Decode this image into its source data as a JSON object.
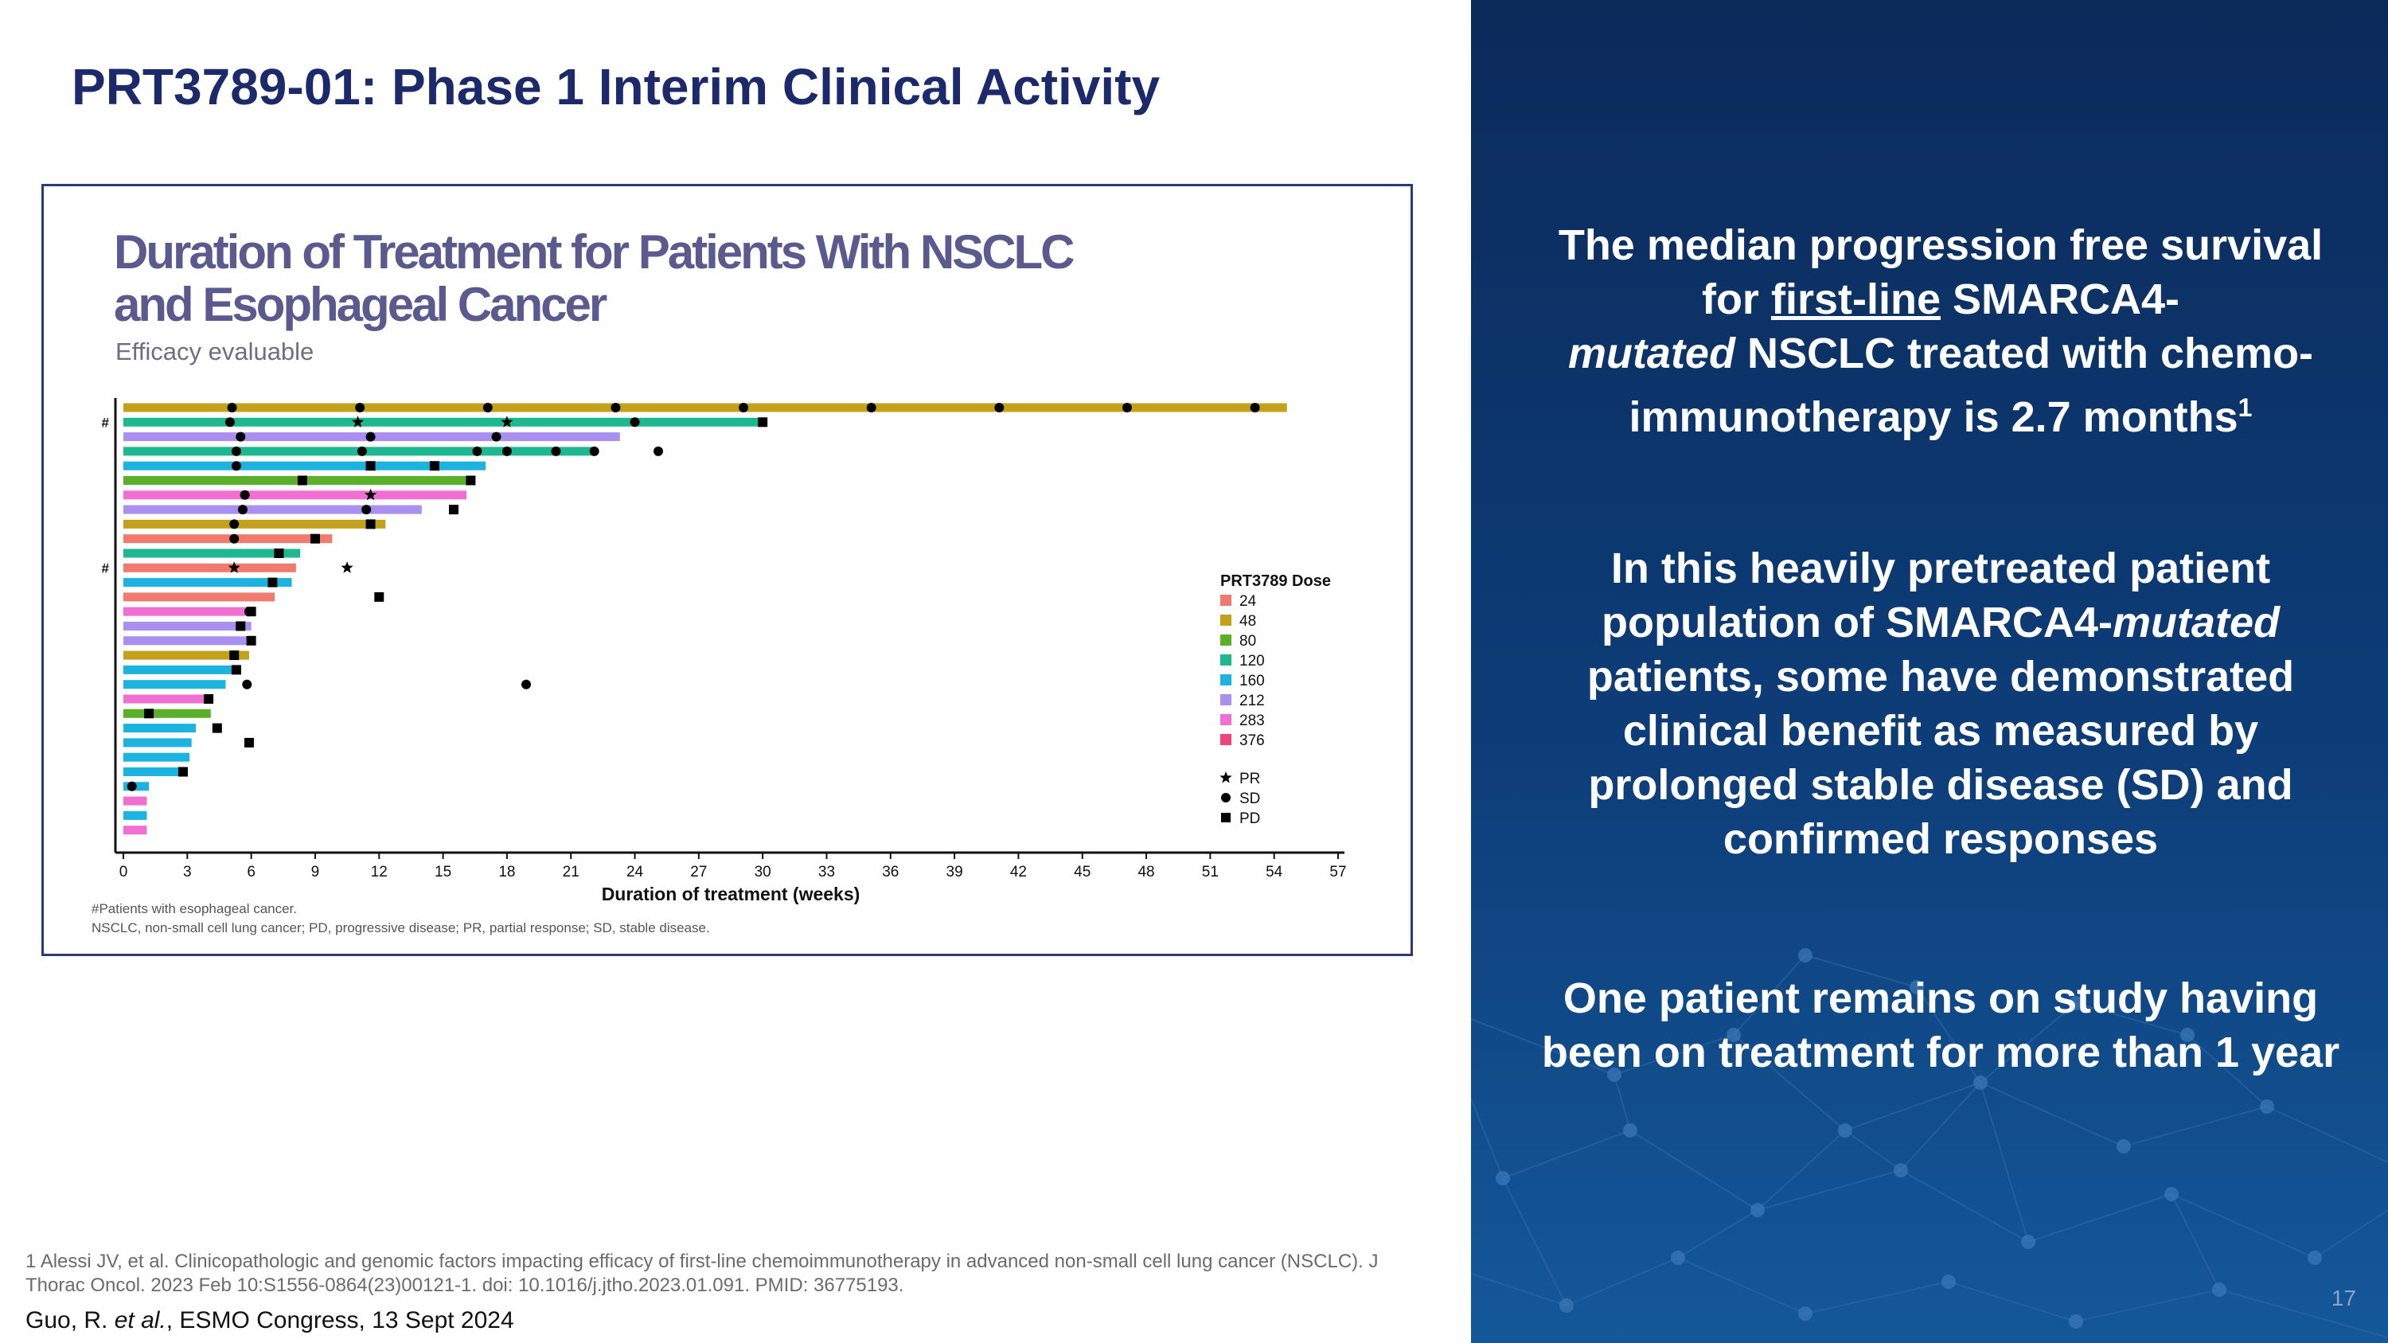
{
  "slide": {
    "title": "PRT3789-01: Phase 1 Interim Clinical Activity",
    "page_number": "17",
    "reference": "1 Alessi JV, et al. Clinicopathologic and genomic factors impacting efficacy of first-line chemoimmunotherapy in advanced non-small cell lung cancer (NSCLC). J Thorac Oncol. 2023 Feb 10:S1556-0864(23)00121-1. doi: 10.1016/j.jtho.2023.01.091. PMID: 36775193.",
    "citation_author": "Guo, R.",
    "citation_etal": "et al.",
    "citation_rest": ", ESMO Congress, 13 Sept 2024"
  },
  "panel": {
    "p1_a": "The median progression free survival for",
    "p1_link": "first-line",
    "p1_b": "SMARCA4-",
    "p1_italic": "mutated",
    "p1_c": "NSCLC treated with chemo-immunotherapy is 2.7 months",
    "p1_sup": "1",
    "p2_a": "In this heavily pretreated patient population of SMARCA4-",
    "p2_italic": "mutated",
    "p2_b": "patients, some have demonstrated clinical benefit as measured by prolonged stable disease (SD) and confirmed responses",
    "p3": "One patient remains on study having been on treatment for more than 1 year"
  },
  "chart_data": {
    "type": "swimmer",
    "title_line1": "Duration of Treatment for Patients With NSCLC",
    "title_line2": "and Esophageal Cancer",
    "subtitle": "Efficacy evaluable",
    "xlabel": "Duration of treatment (weeks)",
    "xlim": [
      0,
      57
    ],
    "xticks": [
      "0",
      "3",
      "6",
      "9",
      "12",
      "15",
      "18",
      "21",
      "24",
      "27",
      "30",
      "33",
      "36",
      "39",
      "42",
      "45",
      "48",
      "51",
      "54",
      "57"
    ],
    "legend_title": "PRT3789 Dose",
    "doses": [
      {
        "label": "24",
        "color": "#f07a6e"
      },
      {
        "label": "48",
        "color": "#c4a11a"
      },
      {
        "label": "80",
        "color": "#5bb02a"
      },
      {
        "label": "120",
        "color": "#1db88f"
      },
      {
        "label": "160",
        "color": "#1cb3e0"
      },
      {
        "label": "212",
        "color": "#a98ff0"
      },
      {
        "label": "283",
        "color": "#f06fd0"
      },
      {
        "label": "376",
        "color": "#f0457a"
      }
    ],
    "markers": [
      {
        "symbol": "star",
        "label": "PR"
      },
      {
        "symbol": "circle",
        "label": "SD"
      },
      {
        "symbol": "square",
        "label": "PD"
      }
    ],
    "footnote1": "#Patients with esophageal cancer.",
    "footnote2": "NSCLC, non-small cell lung cancer; PD, progressive disease; PR, partial response; SD, stable disease.",
    "patients": [
      {
        "dose": "48",
        "end": 54.6,
        "flag": "",
        "events": [
          {
            "t": 5.1,
            "m": "SD"
          },
          {
            "t": 11.1,
            "m": "SD"
          },
          {
            "t": 17.1,
            "m": "SD"
          },
          {
            "t": 23.1,
            "m": "SD"
          },
          {
            "t": 29.1,
            "m": "SD"
          },
          {
            "t": 35.1,
            "m": "SD"
          },
          {
            "t": 41.1,
            "m": "SD"
          },
          {
            "t": 47.1,
            "m": "SD"
          },
          {
            "t": 53.1,
            "m": "SD"
          }
        ]
      },
      {
        "dose": "120",
        "end": 30.0,
        "flag": "#",
        "events": [
          {
            "t": 5.0,
            "m": "SD"
          },
          {
            "t": 11.0,
            "m": "PR"
          },
          {
            "t": 18.0,
            "m": "PR"
          },
          {
            "t": 24.0,
            "m": "SD"
          },
          {
            "t": 30.0,
            "m": "PD"
          }
        ]
      },
      {
        "dose": "212",
        "end": 23.3,
        "flag": "",
        "events": [
          {
            "t": 5.5,
            "m": "SD"
          },
          {
            "t": 11.6,
            "m": "SD"
          },
          {
            "t": 17.5,
            "m": "SD"
          }
        ]
      },
      {
        "dose": "120",
        "end": 22.1,
        "flag": "",
        "events": [
          {
            "t": 5.3,
            "m": "SD"
          },
          {
            "t": 11.2,
            "m": "SD"
          },
          {
            "t": 16.6,
            "m": "SD"
          },
          {
            "t": 18.0,
            "m": "SD"
          },
          {
            "t": 20.3,
            "m": "SD"
          },
          {
            "t": 22.1,
            "m": "SD"
          },
          {
            "t": 25.1,
            "m": "SD"
          }
        ]
      },
      {
        "dose": "160",
        "end": 17.0,
        "flag": "",
        "events": [
          {
            "t": 5.3,
            "m": "SD"
          },
          {
            "t": 11.6,
            "m": "PD"
          },
          {
            "t": 14.6,
            "m": "PD"
          }
        ]
      },
      {
        "dose": "80",
        "end": 16.3,
        "flag": "",
        "events": [
          {
            "t": 8.4,
            "m": "PD"
          },
          {
            "t": 16.3,
            "m": "PD"
          }
        ]
      },
      {
        "dose": "283",
        "end": 16.1,
        "flag": "",
        "events": [
          {
            "t": 5.7,
            "m": "SD"
          },
          {
            "t": 11.6,
            "m": "PR"
          }
        ]
      },
      {
        "dose": "212",
        "end": 14.0,
        "flag": "",
        "events": [
          {
            "t": 5.6,
            "m": "SD"
          },
          {
            "t": 11.4,
            "m": "SD"
          },
          {
            "t": 15.5,
            "m": "PD"
          }
        ]
      },
      {
        "dose": "48",
        "end": 12.3,
        "flag": "",
        "events": [
          {
            "t": 5.2,
            "m": "SD"
          },
          {
            "t": 11.6,
            "m": "PD"
          }
        ]
      },
      {
        "dose": "24",
        "end": 9.8,
        "flag": "",
        "events": [
          {
            "t": 5.2,
            "m": "SD"
          },
          {
            "t": 9.0,
            "m": "PD"
          }
        ]
      },
      {
        "dose": "120",
        "end": 8.3,
        "flag": "",
        "events": [
          {
            "t": 7.3,
            "m": "PD"
          }
        ]
      },
      {
        "dose": "24",
        "end": 8.1,
        "flag": "#",
        "events": [
          {
            "t": 5.2,
            "m": "PR"
          },
          {
            "t": 10.5,
            "m": "PR"
          }
        ]
      },
      {
        "dose": "160",
        "end": 7.9,
        "flag": "",
        "events": [
          {
            "t": 7.0,
            "m": "PD"
          }
        ]
      },
      {
        "dose": "24",
        "end": 7.1,
        "flag": "",
        "events": [
          {
            "t": 12.0,
            "m": "PD"
          }
        ]
      },
      {
        "dose": "283",
        "end": 6.0,
        "flag": "",
        "events": [
          {
            "t": 5.9,
            "m": "SD"
          },
          {
            "t": 6.0,
            "m": "PD"
          }
        ]
      },
      {
        "dose": "212",
        "end": 6.0,
        "flag": "",
        "events": [
          {
            "t": 5.5,
            "m": "PD"
          }
        ]
      },
      {
        "dose": "212",
        "end": 6.0,
        "flag": "",
        "events": [
          {
            "t": 6.0,
            "m": "PD"
          }
        ]
      },
      {
        "dose": "48",
        "end": 5.9,
        "flag": "",
        "events": [
          {
            "t": 5.2,
            "m": "PD"
          }
        ]
      },
      {
        "dose": "160",
        "end": 5.2,
        "flag": "",
        "events": [
          {
            "t": 5.3,
            "m": "PD"
          }
        ]
      },
      {
        "dose": "160",
        "end": 4.8,
        "flag": "",
        "events": [
          {
            "t": 5.8,
            "m": "SD"
          },
          {
            "t": 18.9,
            "m": "SD"
          }
        ]
      },
      {
        "dose": "283",
        "end": 4.0,
        "flag": "",
        "events": [
          {
            "t": 4.0,
            "m": "PD"
          }
        ]
      },
      {
        "dose": "80",
        "end": 4.1,
        "flag": "",
        "events": [
          {
            "t": 1.2,
            "m": "PD"
          }
        ]
      },
      {
        "dose": "160",
        "end": 3.4,
        "flag": "",
        "events": [
          {
            "t": 4.4,
            "m": "PD"
          }
        ]
      },
      {
        "dose": "160",
        "end": 3.2,
        "flag": "",
        "events": [
          {
            "t": 5.9,
            "m": "PD"
          }
        ]
      },
      {
        "dose": "160",
        "end": 3.1,
        "flag": "",
        "events": []
      },
      {
        "dose": "160",
        "end": 2.7,
        "flag": "",
        "events": [
          {
            "t": 2.8,
            "m": "PD"
          }
        ]
      },
      {
        "dose": "160",
        "end": 1.2,
        "flag": "",
        "events": [
          {
            "t": 0.4,
            "m": "SD"
          }
        ]
      },
      {
        "dose": "283",
        "end": 1.1,
        "flag": "",
        "events": []
      },
      {
        "dose": "160",
        "end": 1.1,
        "flag": "",
        "events": []
      },
      {
        "dose": "283",
        "end": 1.1,
        "flag": "",
        "events": []
      }
    ]
  }
}
